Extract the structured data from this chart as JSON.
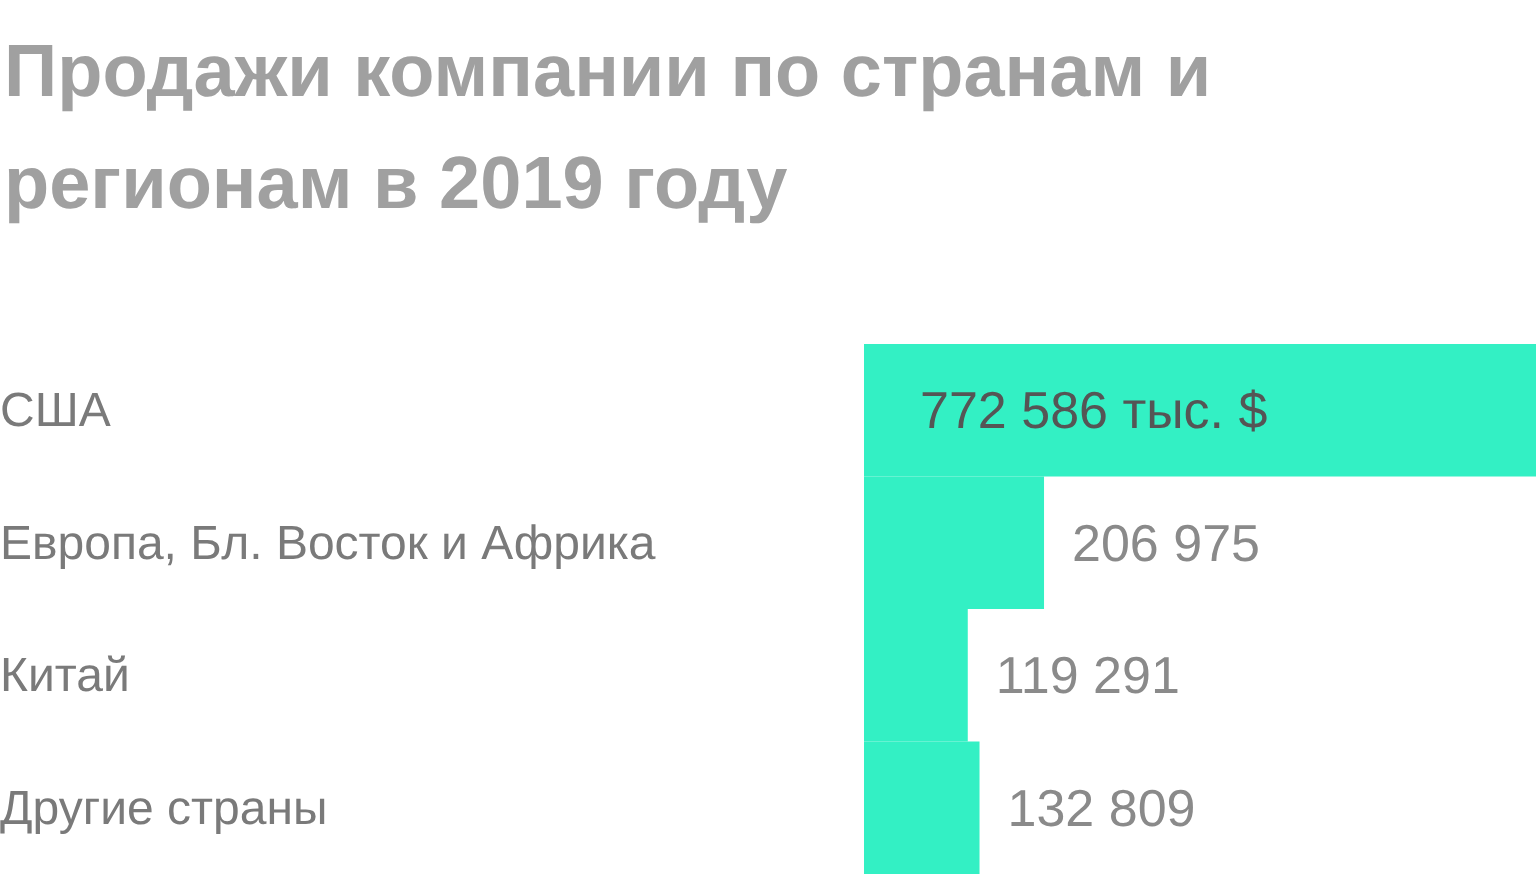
{
  "chart_data": {
    "type": "bar",
    "orientation": "horizontal",
    "title": "Продажи компании по странам и регионам в 2019 году",
    "categories": [
      "США",
      "Европа, Бл. Восток и Африка",
      "Китай",
      "Другие страны"
    ],
    "values": [
      772586,
      206975,
      119291,
      132809
    ],
    "value_labels": [
      "772 586 тыс. $",
      "206 975",
      "119 291",
      "132 809"
    ],
    "color": "#33f0c4"
  }
}
